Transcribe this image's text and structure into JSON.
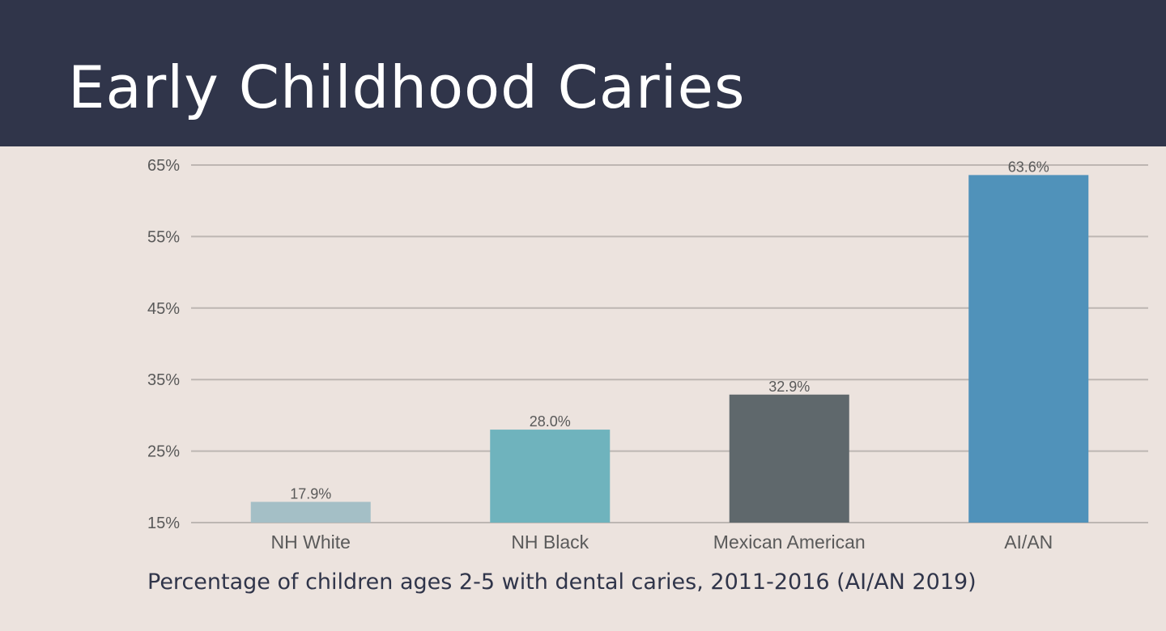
{
  "slide": {
    "title": "Early Childhood Caries",
    "caption": "Percentage of children ages 2-5 with dental caries, 2011-2016 (AI/AN 2019)"
  },
  "colors": {
    "header_background": "#30354a",
    "slide_background": "#ece3de",
    "gridline": "#bdb6b2"
  },
  "chart_data": {
    "type": "bar",
    "title": "",
    "xlabel": "",
    "ylabel": "",
    "categories": [
      "NH White",
      "NH Black",
      "Mexican American",
      "AI/AN"
    ],
    "values": [
      17.9,
      28.0,
      32.9,
      63.6
    ],
    "data_labels": [
      "17.9%",
      "28.0%",
      "32.9%",
      "63.6%"
    ],
    "bar_colors": [
      "#a4bfc6",
      "#6fb3bd",
      "#5f686c",
      "#5092ba"
    ],
    "ylim": [
      15,
      65
    ],
    "yticks": [
      65,
      55,
      45,
      35,
      25,
      15
    ],
    "ytick_labels": [
      "65%",
      "55%",
      "45%",
      "35%",
      "25%",
      "15%"
    ],
    "grid": true,
    "legend": "none"
  }
}
